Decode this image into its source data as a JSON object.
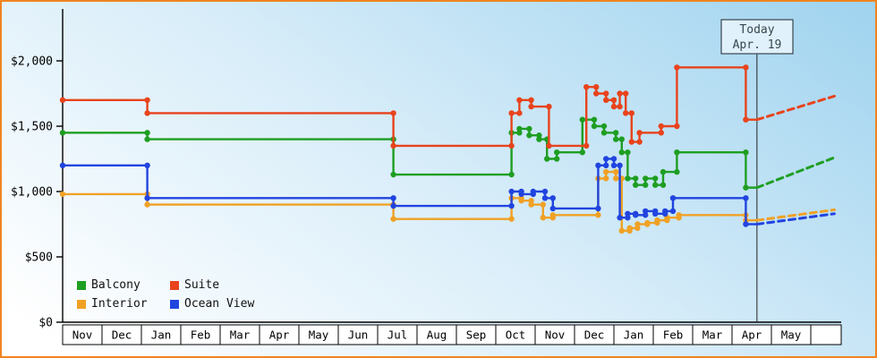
{
  "frame": {
    "border_color": "#f08420",
    "background_tint": "#9fd3ef"
  },
  "chart_data": {
    "type": "line",
    "style": "step",
    "title": "",
    "xlabel": "",
    "ylabel": "",
    "ylim": [
      0,
      2000
    ],
    "x_unit": "months",
    "x_range_months": [
      0,
      19.77
    ],
    "x_labels": [
      "Nov",
      "Dec",
      "Jan",
      "Feb",
      "Mar",
      "Apr",
      "May",
      "Jun",
      "Jul",
      "Aug",
      "Sep",
      "Oct",
      "Nov",
      "Dec",
      "Jan",
      "Feb",
      "Mar",
      "Apr",
      "May"
    ],
    "y_ticks": [
      {
        "label": "$0",
        "value": 0
      },
      {
        "label": "$500",
        "value": 500
      },
      {
        "label": "$1,000",
        "value": 1000
      },
      {
        "label": "$1,500",
        "value": 1500
      },
      {
        "label": "$2,000",
        "value": 2000
      }
    ],
    "today": {
      "label": "Today",
      "date_label": "Apr. 19",
      "x_month": 17.633
    },
    "legend_rows": [
      [
        "Balcony",
        "Suite"
      ],
      [
        "Interior",
        "Ocean View"
      ]
    ],
    "series": [
      {
        "name": "Interior",
        "color": "#f0a125",
        "points": [
          [
            0,
            980
          ],
          [
            2.15,
            900
          ],
          [
            8.4,
            790
          ],
          [
            11.4,
            950
          ],
          [
            11.65,
            930
          ],
          [
            11.9,
            900
          ],
          [
            12.2,
            800
          ],
          [
            12.45,
            820
          ],
          [
            13.6,
            1100
          ],
          [
            13.8,
            1150
          ],
          [
            14.05,
            1100
          ],
          [
            14.2,
            700
          ],
          [
            14.4,
            720
          ],
          [
            14.6,
            750
          ],
          [
            14.85,
            760
          ],
          [
            15.1,
            780
          ],
          [
            15.35,
            800
          ],
          [
            15.65,
            820
          ],
          [
            17.35,
            780
          ]
        ],
        "forecast_end": [
          19.6,
          860
        ]
      },
      {
        "name": "Ocean View",
        "color": "#2144df",
        "points": [
          [
            0,
            1200
          ],
          [
            2.15,
            950
          ],
          [
            8.4,
            890
          ],
          [
            11.4,
            1000
          ],
          [
            11.65,
            980
          ],
          [
            11.95,
            1000
          ],
          [
            12.25,
            950
          ],
          [
            12.45,
            870
          ],
          [
            13.6,
            1200
          ],
          [
            13.8,
            1250
          ],
          [
            14.0,
            1200
          ],
          [
            14.15,
            800
          ],
          [
            14.35,
            830
          ],
          [
            14.55,
            820
          ],
          [
            14.8,
            850
          ],
          [
            15.05,
            830
          ],
          [
            15.3,
            850
          ],
          [
            15.5,
            950
          ],
          [
            17.35,
            750
          ]
        ],
        "forecast_end": [
          19.6,
          830
        ]
      },
      {
        "name": "Balcony",
        "color": "#1e9e22",
        "points": [
          [
            0,
            1450
          ],
          [
            2.15,
            1400
          ],
          [
            8.4,
            1130
          ],
          [
            11.4,
            1450
          ],
          [
            11.6,
            1480
          ],
          [
            11.85,
            1430
          ],
          [
            12.1,
            1400
          ],
          [
            12.3,
            1250
          ],
          [
            12.55,
            1300
          ],
          [
            13.2,
            1550
          ],
          [
            13.5,
            1500
          ],
          [
            13.75,
            1450
          ],
          [
            14.05,
            1400
          ],
          [
            14.2,
            1300
          ],
          [
            14.35,
            1100
          ],
          [
            14.55,
            1050
          ],
          [
            14.8,
            1100
          ],
          [
            15.05,
            1050
          ],
          [
            15.25,
            1150
          ],
          [
            15.6,
            1300
          ],
          [
            17.35,
            1030
          ]
        ],
        "forecast_end": [
          19.6,
          1260
        ]
      },
      {
        "name": "Suite",
        "color": "#e8431c",
        "points": [
          [
            0,
            1700
          ],
          [
            2.15,
            1600
          ],
          [
            8.4,
            1350
          ],
          [
            11.4,
            1600
          ],
          [
            11.6,
            1700
          ],
          [
            11.9,
            1650
          ],
          [
            12.35,
            1350
          ],
          [
            13.3,
            1800
          ],
          [
            13.55,
            1750
          ],
          [
            13.8,
            1700
          ],
          [
            14.0,
            1650
          ],
          [
            14.15,
            1750
          ],
          [
            14.3,
            1600
          ],
          [
            14.45,
            1380
          ],
          [
            14.65,
            1450
          ],
          [
            15.2,
            1500
          ],
          [
            15.6,
            1950
          ],
          [
            17.35,
            1550
          ]
        ],
        "forecast_end": [
          19.6,
          1730
        ]
      }
    ]
  }
}
